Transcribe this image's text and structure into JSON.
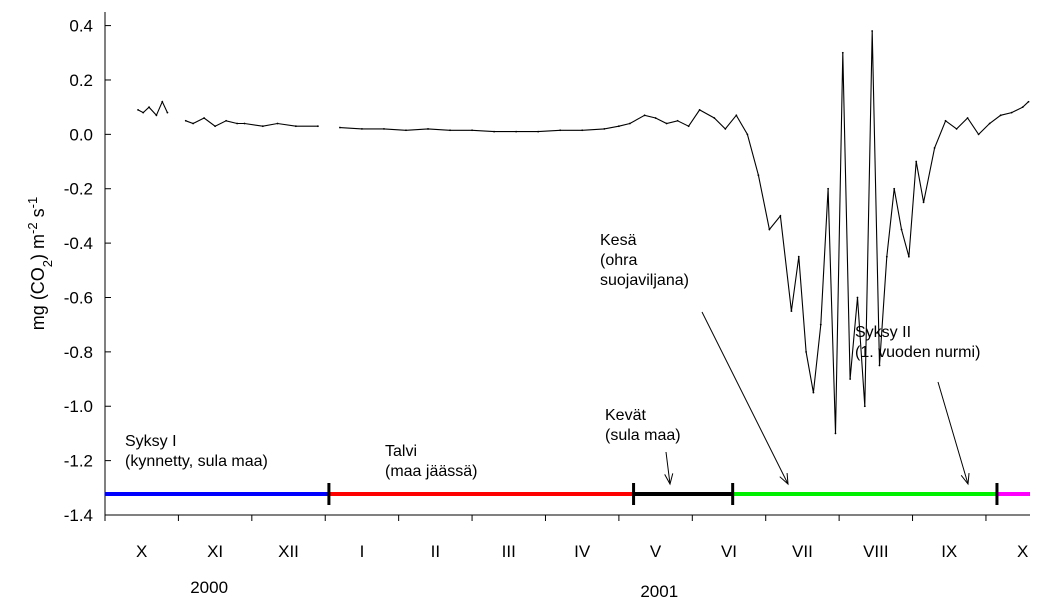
{
  "chart_data": {
    "type": "line",
    "title": "",
    "xlabel": "",
    "ylabel": {
      "base": "mg (CO",
      "sub": "2",
      "mid": ") m",
      "sup1": "-2",
      "tail": " s",
      "sup2": "-1"
    },
    "ylim": [
      -1.4,
      0.45
    ],
    "yticks": [
      -1.4,
      -1.2,
      -1.0,
      -0.8,
      -0.6,
      -0.4,
      -0.2,
      0.0,
      0.2,
      0.4
    ],
    "ytick_labels": [
      "-1.4",
      "-1.2",
      "-1.0",
      "-0.8",
      "-0.6",
      "-0.4",
      "-0.2",
      "0.0",
      "0.2",
      "0.4"
    ],
    "x_unit": "month index (0 = start of X 2000)",
    "xlim": [
      0,
      12.6
    ],
    "months": [
      "X",
      "XI",
      "XII",
      "I",
      "II",
      "III",
      "IV",
      "V",
      "VI",
      "VII",
      "VIII",
      "IX",
      "X"
    ],
    "years": [
      "2000",
      "2001"
    ],
    "grid": false,
    "periods": [
      {
        "name": "Syksy I",
        "detail": "(kynnetty, sula maa)",
        "start": 0.0,
        "end": 3.05,
        "color": "#0000ff"
      },
      {
        "name": "Talvi",
        "detail": "(maa jäässä)",
        "start": 3.05,
        "end": 7.2,
        "color": "#ff0000"
      },
      {
        "name": "Kevät",
        "detail": "(sula maa)",
        "start": 7.2,
        "end": 8.55,
        "color": "#000000"
      },
      {
        "name": "Kesä",
        "detail_lines": [
          "(ohra",
          "suojaviljana)"
        ],
        "start": 8.55,
        "end": 12.15,
        "color": "#00ee00"
      },
      {
        "name": "Syksy II",
        "detail": "(1. vuoden nurmi)",
        "start": 12.15,
        "end": 12.6,
        "color": "#ff00ff"
      }
    ],
    "series": [
      {
        "x": [
          0.45,
          0.52,
          0.6,
          0.7,
          0.78,
          0.85,
          1.1,
          1.2,
          1.35,
          1.5,
          1.65,
          1.8,
          1.9,
          2.15,
          2.35,
          2.6,
          2.9,
          3.2,
          3.5,
          3.8,
          4.1,
          4.4,
          4.7,
          5.0,
          5.3,
          5.6,
          5.9,
          6.2,
          6.5,
          6.8,
          7.0,
          7.15,
          7.35,
          7.5,
          7.65,
          7.8,
          7.95,
          8.1,
          8.3,
          8.45,
          8.6,
          8.75,
          8.9,
          9.05,
          9.2,
          9.35,
          9.45,
          9.55,
          9.65,
          9.75,
          9.85,
          9.95,
          10.05,
          10.15,
          10.25,
          10.35,
          10.45,
          10.55,
          10.65,
          10.75,
          10.85,
          10.95,
          11.05,
          11.15,
          11.3,
          11.45,
          11.6,
          11.75,
          11.9,
          12.05,
          12.2,
          12.35,
          12.5,
          12.58
        ],
        "y": [
          0.09,
          0.08,
          0.1,
          0.07,
          0.12,
          0.08,
          0.05,
          0.04,
          0.06,
          0.03,
          0.05,
          0.04,
          0.04,
          0.03,
          0.04,
          0.03,
          0.03,
          0.025,
          0.02,
          0.02,
          0.015,
          0.02,
          0.015,
          0.015,
          0.01,
          0.01,
          0.01,
          0.015,
          0.015,
          0.02,
          0.03,
          0.04,
          0.07,
          0.06,
          0.04,
          0.05,
          0.03,
          0.09,
          0.06,
          0.02,
          0.07,
          0.0,
          -0.15,
          -0.35,
          -0.3,
          -0.65,
          -0.45,
          -0.8,
          -0.95,
          -0.7,
          -0.2,
          -1.1,
          0.3,
          -0.9,
          -0.6,
          -1.0,
          0.38,
          -0.85,
          -0.45,
          -0.2,
          -0.35,
          -0.45,
          -0.1,
          -0.25,
          -0.05,
          0.05,
          0.02,
          0.06,
          0.0,
          0.04,
          0.07,
          0.08,
          0.1,
          0.12
        ]
      }
    ],
    "annotations": [
      {
        "lines": [
          "Syksy I",
          "(kynnetty, sula maa)"
        ],
        "arrow": false
      },
      {
        "lines": [
          "Talvi",
          "(maa jäässä)"
        ],
        "arrow": false
      },
      {
        "lines": [
          "Kevät",
          "(sula maa)"
        ],
        "arrow": true
      },
      {
        "lines": [
          "Kesä",
          "(ohra",
          "suojaviljana)"
        ],
        "arrow": true
      },
      {
        "lines": [
          "Syksy II",
          "(1. vuoden nurmi)"
        ],
        "arrow": true
      }
    ]
  }
}
